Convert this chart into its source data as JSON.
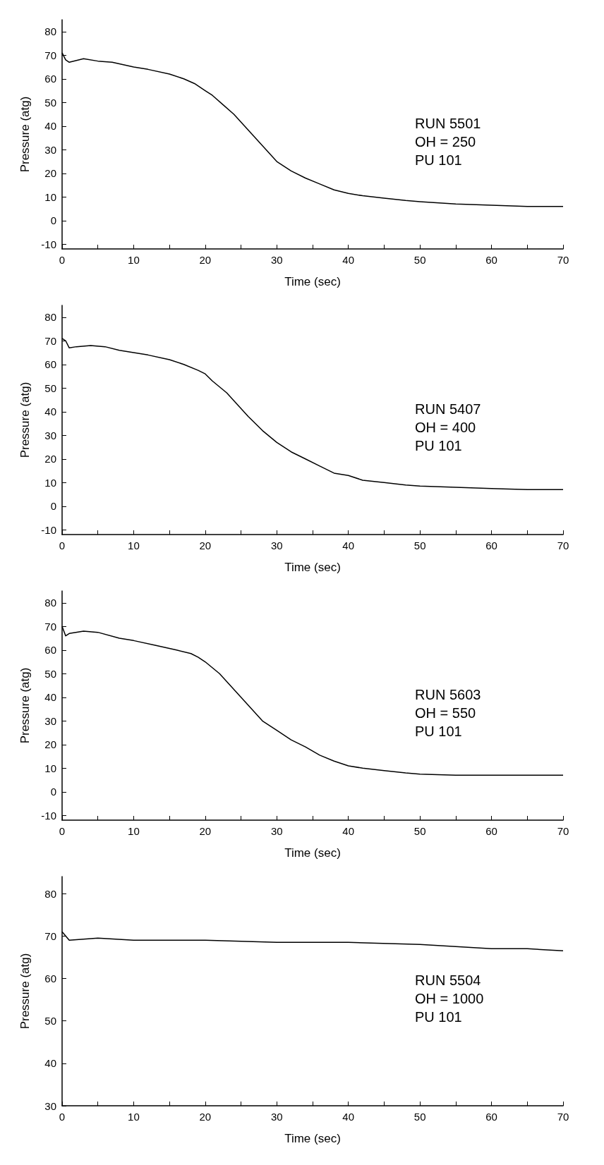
{
  "chart_data": [
    {
      "type": "line",
      "xlabel": "Time (sec)",
      "ylabel": "Pressure (atg)",
      "marker": "none",
      "line_style": "solid",
      "color": "#000000",
      "annotations": [
        "RUN 5501",
        "OH = 250",
        "PU 101"
      ],
      "x": [
        0,
        0.5,
        1,
        3,
        5,
        7,
        10,
        12,
        15,
        17,
        18.5,
        20,
        21,
        22.5,
        24,
        25.5,
        27,
        28.5,
        30,
        32,
        34,
        36,
        38,
        40,
        42,
        45,
        48,
        50,
        55,
        60,
        65,
        70
      ],
      "values": [
        71,
        68,
        67,
        68.5,
        67.5,
        67,
        65,
        64,
        62,
        60,
        58,
        55,
        53,
        49,
        45,
        40,
        35,
        30,
        25,
        21,
        18,
        15.5,
        13,
        11.5,
        10.5,
        9.5,
        8.5,
        8,
        7,
        6.5,
        6,
        6
      ],
      "xlim": [
        0,
        70
      ],
      "ylim": [
        -12,
        85
      ],
      "xticks": [
        0,
        {
          "value": 5,
          "label": null
        },
        10,
        {
          "value": 15,
          "label": null
        },
        20,
        {
          "value": 25,
          "label": null
        },
        30,
        {
          "value": 35,
          "label": null
        },
        40,
        {
          "value": 45,
          "label": null
        },
        50,
        {
          "value": 55,
          "label": null
        },
        60,
        {
          "value": 65,
          "label": null
        },
        70
      ],
      "yticks": [
        -10,
        0,
        10,
        20,
        30,
        40,
        50,
        60,
        70,
        80
      ]
    },
    {
      "type": "line",
      "xlabel": "Time (sec)",
      "ylabel": "Pressure (atg)",
      "marker": "none",
      "line_style": "solid",
      "color": "#000000",
      "annotations": [
        "RUN 5407",
        "OH = 400",
        "PU 101"
      ],
      "x": [
        0,
        0.5,
        1,
        2,
        4,
        6,
        8,
        10,
        12,
        15,
        17,
        19,
        20,
        21,
        23,
        24.5,
        26,
        28,
        30,
        32,
        34,
        36,
        38,
        40,
        42,
        45,
        48,
        50,
        55,
        60,
        65,
        70
      ],
      "values": [
        71,
        70,
        67,
        67.5,
        68,
        67.5,
        66,
        65,
        64,
        62,
        60,
        57.5,
        56,
        53,
        48,
        43,
        38,
        32,
        27,
        23,
        20,
        17,
        14,
        13,
        11,
        10,
        9,
        8.5,
        8,
        7.5,
        7,
        7
      ],
      "xlim": [
        0,
        70
      ],
      "ylim": [
        -12,
        85
      ],
      "xticks": [
        0,
        {
          "value": 5,
          "label": null
        },
        10,
        {
          "value": 15,
          "label": null
        },
        20,
        {
          "value": 25,
          "label": null
        },
        30,
        {
          "value": 35,
          "label": null
        },
        40,
        {
          "value": 45,
          "label": null
        },
        50,
        {
          "value": 55,
          "label": null
        },
        60,
        {
          "value": 65,
          "label": null
        },
        70
      ],
      "yticks": [
        -10,
        0,
        10,
        20,
        30,
        40,
        50,
        60,
        70,
        80
      ]
    },
    {
      "type": "line",
      "xlabel": "Time (sec)",
      "ylabel": "Pressure (atg)",
      "marker": "none",
      "line_style": "solid",
      "color": "#000000",
      "annotations": [
        "RUN 5603",
        "OH = 550",
        "PU 101"
      ],
      "x": [
        0,
        0.5,
        1,
        3,
        5,
        8,
        10,
        13,
        16,
        18,
        19,
        20,
        22,
        23.5,
        25,
        26.5,
        28,
        30,
        32,
        34,
        36,
        38,
        40,
        42,
        45,
        48,
        50,
        55,
        60,
        65,
        70
      ],
      "values": [
        70,
        66,
        67,
        68,
        67.5,
        65,
        64,
        62,
        60,
        58.5,
        57,
        55,
        50,
        45,
        40,
        35,
        30,
        26,
        22,
        19,
        15.5,
        13,
        11,
        10,
        9,
        8,
        7.5,
        7,
        7,
        7,
        7
      ],
      "xlim": [
        0,
        70
      ],
      "ylim": [
        -12,
        85
      ],
      "xticks": [
        0,
        {
          "value": 5,
          "label": null
        },
        10,
        {
          "value": 15,
          "label": null
        },
        20,
        {
          "value": 25,
          "label": null
        },
        30,
        {
          "value": 35,
          "label": null
        },
        40,
        {
          "value": 45,
          "label": null
        },
        50,
        {
          "value": 55,
          "label": null
        },
        60,
        {
          "value": 65,
          "label": null
        },
        70
      ],
      "yticks": [
        -10,
        0,
        10,
        20,
        30,
        40,
        50,
        60,
        70,
        80
      ]
    },
    {
      "type": "line",
      "xlabel": "Time (sec)",
      "ylabel": "Pressure (atg)",
      "marker": "none",
      "line_style": "solid",
      "color": "#000000",
      "annotations": [
        "RUN 5504",
        "OH = 1000",
        "PU 101"
      ],
      "x": [
        0,
        0.5,
        1,
        5,
        10,
        20,
        30,
        40,
        50,
        60,
        65,
        70
      ],
      "values": [
        71,
        70,
        69,
        69.5,
        69,
        69,
        68.5,
        68.5,
        68,
        67,
        67,
        66.5
      ],
      "xlim": [
        0,
        70
      ],
      "ylim": [
        30,
        84
      ],
      "xticks": [
        0,
        {
          "value": 5,
          "label": null
        },
        10,
        {
          "value": 15,
          "label": null
        },
        20,
        {
          "value": 25,
          "label": null
        },
        30,
        {
          "value": 35,
          "label": null
        },
        40,
        {
          "value": 45,
          "label": null
        },
        50,
        {
          "value": 55,
          "label": null
        },
        60,
        {
          "value": 65,
          "label": null
        },
        70
      ],
      "yticks": [
        30,
        40,
        50,
        60,
        70,
        80
      ]
    }
  ]
}
